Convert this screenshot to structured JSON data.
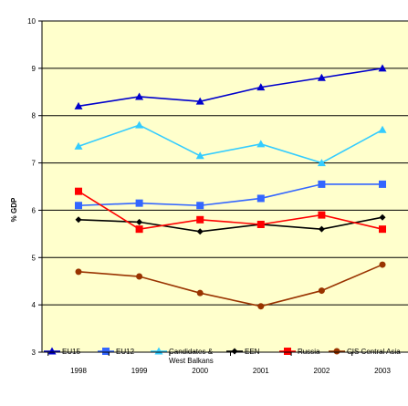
{
  "chart_data": {
    "type": "line",
    "ylabel": "% GDP",
    "ylim": [
      3,
      10
    ],
    "yticks": [
      "3",
      "4",
      "5",
      "6",
      "7",
      "8",
      "9",
      "10"
    ],
    "categories": [
      "1998",
      "1999",
      "2000",
      "2001",
      "2002",
      "2003"
    ],
    "grid": true,
    "legend_position": "bottom-inside",
    "plot_background": "#ffffcc",
    "series": [
      {
        "name": "EU15",
        "color": "#0000cc",
        "marker": "triangle",
        "values": [
          8.2,
          8.4,
          8.3,
          8.6,
          8.8,
          9.0
        ]
      },
      {
        "name": "EU12",
        "color": "#3366ff",
        "marker": "square",
        "values": [
          6.1,
          6.15,
          6.1,
          6.25,
          6.55,
          6.55
        ]
      },
      {
        "name": "Candidates & West Balkans",
        "legend_lines": [
          "Candidates &",
          "West Balkans"
        ],
        "color": "#33ccff",
        "marker": "triangle",
        "values": [
          7.35,
          7.8,
          7.15,
          7.4,
          7.0,
          7.7
        ]
      },
      {
        "name": "EEN",
        "color": "#000000",
        "marker": "diamond",
        "values": [
          5.8,
          5.75,
          5.55,
          5.7,
          5.6,
          5.85
        ]
      },
      {
        "name": "Russia",
        "color": "#ff0000",
        "marker": "square",
        "values": [
          6.4,
          5.6,
          5.8,
          5.7,
          5.9,
          5.6
        ]
      },
      {
        "name": "CIS Central Asia",
        "color": "#993300",
        "marker": "circle",
        "values": [
          4.7,
          4.6,
          4.25,
          3.97,
          4.3,
          4.85
        ]
      }
    ]
  }
}
